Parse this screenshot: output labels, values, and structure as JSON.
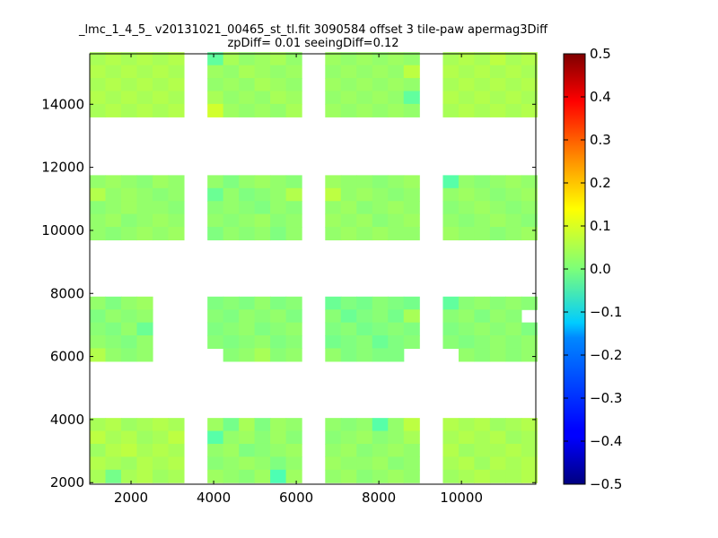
{
  "chart_data": {
    "type": "heatmap",
    "title_line1": "_lmc_1_4_5_ v20131021_00465_st_tl.fit 3090584 offset 3 tile-paw apermag3Diff",
    "title_line2": "zpDiff= 0.01 seeingDiff=0.12",
    "xlabel": "",
    "ylabel": "",
    "xlim": [
      1000,
      11800
    ],
    "ylim": [
      1950,
      15600
    ],
    "xticks": [
      2000,
      4000,
      6000,
      8000,
      10000
    ],
    "yticks": [
      2000,
      4000,
      6000,
      8000,
      10000,
      12000,
      14000
    ],
    "colorbar": {
      "colormap": "jet",
      "range": [
        -0.5,
        0.5
      ],
      "ticks": [
        0.5,
        0.4,
        0.3,
        0.2,
        0.1,
        0.0,
        -0.1,
        -0.2,
        -0.3,
        -0.4,
        -0.5
      ],
      "tick_labels": [
        "0.5",
        "0.4",
        "0.3",
        "0.2",
        "0.1",
        "0.0",
        "−0.1",
        "−0.2",
        "−0.3",
        "−0.4",
        "−0.5"
      ]
    },
    "cell_size": [
      380,
      410
    ],
    "columns_x0": [
      1000,
      3850,
      6700,
      9550
    ],
    "detector_rows_y0": [
      2000,
      5850,
      9700,
      13600
    ],
    "grid_cols": 6,
    "grid_rows": 5,
    "blocks": [
      {
        "col": 0,
        "row": 0,
        "values": [
          [
            0.04,
            0.05,
            0.03,
            0.04,
            0.05,
            0.04
          ],
          [
            0.06,
            0.04,
            0.05,
            0.03,
            0.04,
            0.06
          ],
          [
            0.03,
            0.05,
            0.06,
            0.04,
            0.05,
            0.04
          ],
          [
            0.05,
            0.04,
            0.03,
            0.05,
            0.04,
            0.05
          ],
          [
            0.04,
            -0.01,
            0.04,
            0.05,
            0.03,
            0.04
          ]
        ]
      },
      {
        "col": 1,
        "row": 0,
        "values": [
          [
            0.03,
            -0.01,
            0.04,
            0.0,
            0.03,
            0.02
          ],
          [
            -0.04,
            0.02,
            0.03,
            0.01,
            0.03,
            0.01
          ],
          [
            0.02,
            0.03,
            0.0,
            0.01,
            0.02,
            0.03
          ],
          [
            0.01,
            0.02,
            0.03,
            0.02,
            0.0,
            0.02
          ],
          [
            0.03,
            0.02,
            0.01,
            0.03,
            -0.05,
            0.03
          ]
        ]
      },
      {
        "col": 2,
        "row": 0,
        "values": [
          [
            0.02,
            0.01,
            0.02,
            -0.04,
            0.02,
            0.06
          ],
          [
            0.01,
            0.02,
            0.03,
            0.01,
            0.02,
            0.04
          ],
          [
            0.02,
            0.03,
            0.01,
            0.02,
            0.03,
            0.02
          ],
          [
            0.03,
            0.02,
            0.02,
            0.03,
            0.01,
            0.02
          ],
          [
            0.02,
            0.03,
            0.01,
            0.02,
            0.03,
            0.02
          ]
        ]
      },
      {
        "col": 3,
        "row": 0,
        "values": [
          [
            0.05,
            0.04,
            0.05,
            0.03,
            0.04,
            0.05
          ],
          [
            0.04,
            0.05,
            0.04,
            0.05,
            0.03,
            0.04
          ],
          [
            0.05,
            0.03,
            0.04,
            0.04,
            0.05,
            0.04
          ],
          [
            0.04,
            0.05,
            0.03,
            0.05,
            0.04,
            0.05
          ],
          [
            0.03,
            0.04,
            0.05,
            0.04,
            0.04,
            0.05
          ]
        ]
      },
      {
        "col": 0,
        "row": 1,
        "values": [
          [
            0.02,
            0.0,
            0.02,
            0.03,
            null,
            null
          ],
          [
            0.0,
            0.02,
            0.01,
            0.02,
            null,
            null
          ],
          [
            0.01,
            0.0,
            0.02,
            -0.02,
            null,
            null
          ],
          [
            0.02,
            0.01,
            0.0,
            0.02,
            null,
            null
          ],
          [
            0.05,
            0.02,
            0.01,
            0.02,
            null,
            null
          ]
        ]
      },
      {
        "col": 1,
        "row": 1,
        "values": [
          [
            0.0,
            0.01,
            0.0,
            0.02,
            0.0,
            0.01
          ],
          [
            0.01,
            0.0,
            0.02,
            0.01,
            0.02,
            0.0
          ],
          [
            0.0,
            0.01,
            0.02,
            0.0,
            0.01,
            0.02
          ],
          [
            0.01,
            0.0,
            0.01,
            0.02,
            0.0,
            0.01
          ],
          [
            null,
            0.01,
            0.02,
            0.04,
            0.01,
            0.02
          ]
        ]
      },
      {
        "col": 2,
        "row": 1,
        "values": [
          [
            -0.02,
            0.0,
            -0.01,
            0.01,
            0.0,
            -0.01
          ],
          [
            0.01,
            -0.02,
            0.0,
            0.01,
            -0.01,
            0.04
          ],
          [
            0.0,
            0.01,
            -0.01,
            0.0,
            0.01,
            0.0
          ],
          [
            -0.01,
            0.0,
            0.01,
            -0.02,
            0.0,
            0.01
          ],
          [
            0.02,
            0.0,
            0.01,
            0.0,
            0.0,
            null
          ]
        ]
      },
      {
        "col": 3,
        "row": 1,
        "values": [
          [
            -0.03,
            0.01,
            0.02,
            0.01,
            0.02,
            0.01
          ],
          [
            0.01,
            0.02,
            0.0,
            0.02,
            0.01,
            null
          ],
          [
            0.0,
            0.01,
            0.02,
            0.01,
            0.02,
            0.0
          ],
          [
            0.01,
            0.0,
            0.01,
            0.02,
            0.01,
            0.02
          ],
          [
            null,
            0.02,
            0.01,
            0.02,
            0.01,
            0.02
          ]
        ]
      },
      {
        "col": 0,
        "row": 2,
        "values": [
          [
            0.02,
            0.03,
            0.02,
            0.01,
            0.03,
            0.02
          ],
          [
            0.05,
            0.02,
            0.03,
            0.02,
            0.01,
            0.02
          ],
          [
            0.01,
            0.02,
            0.03,
            0.02,
            0.02,
            0.01
          ],
          [
            0.02,
            0.03,
            0.01,
            0.02,
            0.03,
            0.02
          ],
          [
            0.02,
            0.01,
            0.02,
            0.03,
            0.02,
            0.03
          ]
        ]
      },
      {
        "col": 1,
        "row": 2,
        "values": [
          [
            0.02,
            0.0,
            0.02,
            0.03,
            0.02,
            0.01
          ],
          [
            -0.02,
            0.02,
            0.0,
            0.01,
            0.02,
            0.05
          ],
          [
            0.01,
            0.02,
            0.01,
            0.0,
            0.02,
            0.01
          ],
          [
            0.02,
            0.01,
            0.02,
            0.03,
            0.01,
            0.02
          ],
          [
            0.0,
            0.02,
            0.01,
            0.02,
            0.0,
            0.02
          ]
        ]
      },
      {
        "col": 2,
        "row": 2,
        "values": [
          [
            0.03,
            0.02,
            0.02,
            0.01,
            0.02,
            0.03
          ],
          [
            0.06,
            0.02,
            0.03,
            0.02,
            0.01,
            0.02
          ],
          [
            0.02,
            0.03,
            0.01,
            0.02,
            0.03,
            0.02
          ],
          [
            0.03,
            0.02,
            0.03,
            0.01,
            0.02,
            0.03
          ],
          [
            0.02,
            0.03,
            0.02,
            0.03,
            0.02,
            0.02
          ]
        ]
      },
      {
        "col": 3,
        "row": 2,
        "values": [
          [
            -0.04,
            0.02,
            0.01,
            0.02,
            0.03,
            0.02
          ],
          [
            0.02,
            0.03,
            0.02,
            0.01,
            0.02,
            0.03
          ],
          [
            0.01,
            0.02,
            0.03,
            0.02,
            0.01,
            0.02
          ],
          [
            0.02,
            0.01,
            0.02,
            0.03,
            0.02,
            0.01
          ],
          [
            0.03,
            0.02,
            0.02,
            0.01,
            0.02,
            0.03
          ]
        ]
      },
      {
        "col": 0,
        "row": 3,
        "values": [
          [
            0.04,
            0.05,
            0.04,
            0.05,
            0.04,
            0.05
          ],
          [
            0.05,
            0.04,
            0.05,
            0.04,
            0.05,
            0.04
          ],
          [
            0.04,
            0.05,
            0.04,
            0.05,
            0.04,
            0.05
          ],
          [
            0.05,
            0.04,
            0.05,
            0.04,
            0.05,
            0.04
          ],
          [
            0.04,
            0.05,
            0.04,
            0.05,
            0.04,
            0.05
          ]
        ]
      },
      {
        "col": 1,
        "row": 3,
        "values": [
          [
            -0.03,
            0.04,
            0.02,
            0.03,
            0.04,
            0.02
          ],
          [
            0.03,
            0.02,
            0.04,
            0.03,
            0.02,
            0.03
          ],
          [
            0.02,
            0.03,
            0.02,
            0.04,
            0.03,
            0.02
          ],
          [
            0.04,
            0.02,
            0.03,
            0.02,
            0.04,
            0.03
          ],
          [
            0.08,
            0.03,
            0.02,
            0.03,
            0.02,
            0.04
          ]
        ]
      },
      {
        "col": 2,
        "row": 3,
        "values": [
          [
            0.03,
            0.02,
            0.03,
            0.02,
            0.03,
            0.02
          ],
          [
            0.02,
            0.03,
            0.02,
            0.03,
            0.02,
            0.06
          ],
          [
            0.03,
            0.02,
            0.03,
            0.02,
            0.03,
            0.02
          ],
          [
            0.02,
            0.03,
            0.02,
            0.03,
            0.02,
            -0.03
          ],
          [
            0.03,
            0.02,
            0.03,
            0.02,
            0.03,
            0.02
          ]
        ]
      },
      {
        "col": 3,
        "row": 3,
        "values": [
          [
            0.04,
            0.05,
            0.04,
            0.06,
            0.04,
            0.05
          ],
          [
            0.05,
            0.04,
            0.05,
            0.04,
            0.05,
            0.04
          ],
          [
            0.04,
            0.05,
            0.04,
            0.05,
            0.04,
            0.05
          ],
          [
            0.05,
            0.04,
            0.05,
            0.04,
            0.05,
            0.04
          ],
          [
            0.04,
            0.05,
            0.04,
            0.05,
            0.04,
            0.05
          ]
        ]
      }
    ]
  }
}
